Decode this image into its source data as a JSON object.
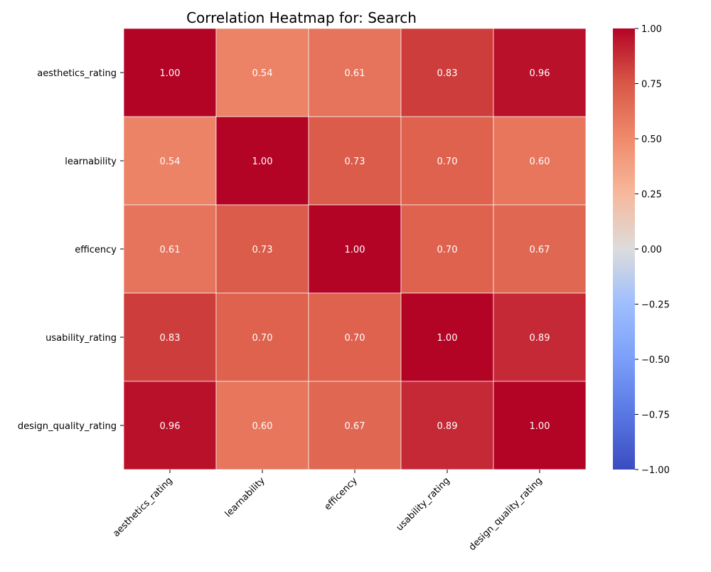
{
  "chart_data": {
    "type": "heatmap",
    "title": "Correlation Heatmap for: Search",
    "rows": [
      "aesthetics_rating",
      "learnability",
      "efficency",
      "usability_rating",
      "design_quality_rating"
    ],
    "columns": [
      "aesthetics_rating",
      "learnability",
      "efficency",
      "usability_rating",
      "design_quality_rating"
    ],
    "values": [
      [
        1.0,
        0.54,
        0.61,
        0.83,
        0.96
      ],
      [
        0.54,
        1.0,
        0.73,
        0.7,
        0.6
      ],
      [
        0.61,
        0.73,
        1.0,
        0.7,
        0.67
      ],
      [
        0.83,
        0.7,
        0.7,
        1.0,
        0.89
      ],
      [
        0.96,
        0.6,
        0.67,
        0.89,
        1.0
      ]
    ],
    "value_format": "2 decimals",
    "colormap": "coolwarm",
    "color_range": [
      -1.0,
      1.0
    ],
    "colorbar_ticks": [
      1.0,
      0.75,
      0.5,
      0.25,
      0.0,
      -0.25,
      -0.5,
      -0.75,
      -1.0
    ],
    "colorbar_tick_labels": [
      "1.00",
      "0.75",
      "0.50",
      "0.25",
      "0.00",
      "−0.25",
      "−0.50",
      "−0.75",
      "−1.00"
    ],
    "colors": {
      "text_on_cell": "#ffffff",
      "grid_line": "#ffffff",
      "axis_text": "#000000"
    }
  }
}
